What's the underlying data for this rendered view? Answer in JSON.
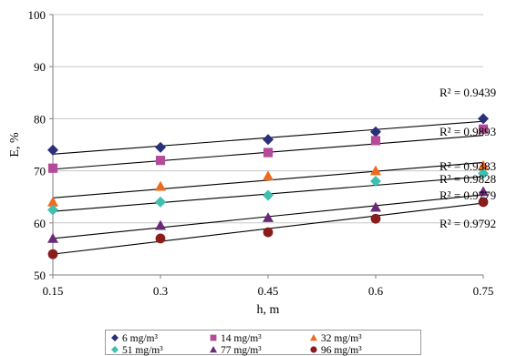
{
  "chart_data": {
    "type": "scatter",
    "title": "",
    "xlabel": "h, m",
    "ylabel": "E, %",
    "x": [
      0.15,
      0.3,
      0.45,
      0.6,
      0.75
    ],
    "x_tick_labels": [
      "0.15",
      "0.3",
      "0.45",
      "0.6",
      "0.75"
    ],
    "ylim": [
      50,
      100
    ],
    "y_ticks": [
      50,
      60,
      70,
      80,
      90,
      100
    ],
    "grid": "horizontal",
    "legend_position": "bottom",
    "series": [
      {
        "name": "6 mg/m³",
        "color": "#2a2f7a",
        "marker": "diamond",
        "values": [
          74,
          74.5,
          76,
          77.5,
          80
        ],
        "trendline": [
          73.2,
          74.8,
          76.3,
          77.9,
          79.5
        ],
        "r2": "R² = 0.9439"
      },
      {
        "name": "14 mg/m³",
        "color": "#b44a9a",
        "marker": "square",
        "values": [
          70.5,
          72,
          73.5,
          75.8,
          78
        ],
        "trendline": [
          70.3,
          71.9,
          73.6,
          75.2,
          76.8
        ],
        "r2": "R² = 0.9893"
      },
      {
        "name": "32 mg/m³",
        "color": "#ee6a1e",
        "marker": "triangle",
        "values": [
          64,
          67,
          69,
          70,
          71
        ],
        "trendline": [
          64.8,
          66.5,
          68.2,
          69.9,
          71.6
        ],
        "r2": "R² = 0.9383"
      },
      {
        "name": "51 mg/m³",
        "color": "#3fbfb0",
        "marker": "diamond",
        "values": [
          62.5,
          64,
          65.3,
          68,
          69.5
        ],
        "trendline": [
          62.2,
          63.9,
          65.5,
          67.2,
          68.9
        ],
        "r2": "R² = 0.9828"
      },
      {
        "name": "77 mg/m³",
        "color": "#6a2a7a",
        "marker": "triangle",
        "values": [
          57,
          59.5,
          61,
          63,
          66
        ],
        "trendline": [
          57.0,
          59.1,
          61.2,
          63.3,
          65.4
        ],
        "r2": "R² = 0.9779"
      },
      {
        "name": "96 mg/m³",
        "color": "#8a1c1c",
        "marker": "circle",
        "values": [
          54,
          57,
          58.2,
          60.8,
          64
        ],
        "trendline": [
          54.0,
          56.5,
          58.9,
          61.4,
          63.8
        ],
        "r2": "R² = 0.9792"
      }
    ]
  }
}
